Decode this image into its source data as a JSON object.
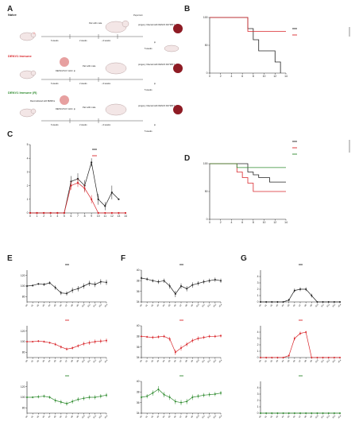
{
  "panels": {
    "A": {
      "letter": "A",
      "groups": [
        {
          "name": "Naive",
          "color": "#222222"
        },
        {
          "name": "DENV1 Immune",
          "color": "#d9262b"
        },
        {
          "name": "DENV1 Immune (R)",
          "color": "#2e8b2e"
        }
      ],
      "pups_born": "Pups born",
      "progeny_label": "progeny Infected with DENV2 D2Y98P 1x10⁷",
      "ip": "ip",
      "steps": {
        "weeks6": "6 weeks",
        "weeks2": "2 weeks",
        "weeks3": "~3 weeks",
        "weeks5": "5 weeks",
        "pair": "Pair with male",
        "denv1_dose": "DENV1/VUV 1x10⁶ ip",
        "denv1_dose_r": "DENV1/VUV 1x10⁵ ip",
        "reconst": "Reconstituted with BMMCs"
      }
    },
    "B": {
      "letter": "B",
      "xlabel": "Days post DENV2 (D2Y98P) infection",
      "ylabel": "Survival (%)",
      "legend": [
        {
          "label": "Kif²⁶ᵈᶜᵃˢ⁻ᶜʳ Ifnar1⁻/⁻ Ifngr1⁺/⁺ Naive Mother",
          "color": "#222222"
        },
        {
          "label": "Kif²⁶ᵈᶜᵃˢ⁻ᶜʳ Ifnar1⁻/⁻ Ifngr1⁺/⁺ Naive Mother",
          "color": "#d9262b"
        }
      ],
      "star": "*"
    },
    "C": {
      "letter": "C",
      "xlabel": "Days post DENV2 (D2Y98P) infection",
      "ylabel": "Clinical Score",
      "legend": [
        {
          "label": "Kif²⁶ᵈᶜᵃˢ⁻ᶜʳ Ifnar1⁻/⁻ Ifngr1⁺/⁺ Naive Mother",
          "color": "#222222"
        },
        {
          "label": "Kif²⁶ᵈᶜᵃˢ⁻ᶜʳ Ifnar1⁻/⁻ Ifngr1⁺/⁺ Naive Mother",
          "color": "#d9262b"
        }
      ]
    },
    "D": {
      "letter": "D",
      "xlabel": "Days post DENV2 (D2Y98P) infection",
      "ylabel": "Survival (%)",
      "legend": [
        {
          "label": "Kif²⁶ᵈᶜᵃˢ⁻ᶜʳ Ifnar1⁻/⁻ Ifngr1⁺/⁺ Naive Mother",
          "color": "#222222"
        },
        {
          "label": "Kif²⁶ᵈᶜᵃˢ⁻ᶜʳ Ifnar1⁻/⁻ Ifngr1⁺/⁺ DENV1 Immune Mother",
          "color": "#d9262b"
        },
        {
          "label": "Kif²⁶ᵈᶜᵃˢ⁻ᶜʳ Ifnar1⁻/⁻ Ifngr1⁺/⁺ DENV1 Immune Mother(R)",
          "color": "#2e8b2e"
        }
      ],
      "pval": "0.116",
      "star": "*"
    },
    "E": {
      "letter": "E",
      "ylabel": "Percentage change in body mass",
      "xlabel": "Days post DENV2 (D2Y98P) infection"
    },
    "F": {
      "letter": "F",
      "ylabel": "Body Temperature in °C",
      "xlabel": "Days post DENV2 (D2Y98P) infection"
    },
    "G": {
      "letter": "G",
      "ylabel": "Clinical Score",
      "xlabel": "Days post DENV2 (D2Y98P) infection"
    }
  },
  "series_legends": {
    "naive": "Kif²⁶ᵈᶜᵃˢ⁻ᶜʳ Ifnar1⁻/⁻ Ifngr1⁺/⁺ Naive Mother",
    "immune": "Kif²⁶ᵈᶜᵃˢ⁻ᶜʳ Ifnar1⁻/⁻ Ifngr1⁺/⁺ DENV1 Immune Mother",
    "immune_r": "Kif²⁶ᵈᶜᵃˢ⁻ᶜʳ Ifnar1⁻/⁻ Ifngr1⁺/⁺ DENV1 Immune Mother(R)"
  },
  "colors": {
    "naive": "#222222",
    "immune": "#d9262b",
    "immune_r": "#2e8b2e"
  },
  "chart_data": [
    {
      "id": "B",
      "type": "line",
      "title": "",
      "xlabel": "Days post DENV2 (D2Y98P) infection",
      "ylabel": "Survival (%)",
      "xlim": [
        0,
        14
      ],
      "ylim": [
        0,
        100
      ],
      "xticks": [
        0,
        2,
        4,
        6,
        8,
        10,
        12,
        14
      ],
      "yticks": [
        0,
        50,
        100
      ],
      "series": [
        {
          "name": "Naive Mother",
          "color": "#222222",
          "x": [
            0,
            6,
            7,
            8,
            9,
            10,
            11,
            12,
            13
          ],
          "y": [
            100,
            100,
            80,
            60,
            40,
            40,
            40,
            20,
            0
          ]
        },
        {
          "name": "Naive Mother",
          "color": "#d9262b",
          "x": [
            0,
            6,
            7,
            14
          ],
          "y": [
            100,
            100,
            75,
            75
          ]
        }
      ]
    },
    {
      "id": "C",
      "type": "line",
      "title": "",
      "xlabel": "Days post DENV2 (D2Y98P) infection",
      "ylabel": "Clinical Score",
      "xlim": [
        0,
        14
      ],
      "ylim": [
        0,
        5
      ],
      "xticks": [
        0,
        1,
        2,
        3,
        4,
        5,
        6,
        7,
        8,
        9,
        10,
        11,
        12,
        13,
        14
      ],
      "yticks": [
        0,
        1,
        2,
        3,
        4,
        5
      ],
      "series": [
        {
          "name": "Naive Mother",
          "color": "#222222",
          "x": [
            0,
            1,
            2,
            3,
            4,
            5,
            6,
            7,
            8,
            9,
            10,
            11,
            12,
            13
          ],
          "y": [
            0,
            0,
            0,
            0,
            0,
            0,
            2.3,
            2.5,
            2.0,
            3.7,
            1.0,
            0.5,
            1.5,
            1.0
          ],
          "err": [
            0,
            0,
            0,
            0,
            0,
            0,
            0.4,
            0.4,
            0.4,
            0.3,
            0.4,
            0.3,
            0.5,
            0
          ]
        },
        {
          "name": "Naive Mother",
          "color": "#d9262b",
          "x": [
            0,
            1,
            2,
            3,
            4,
            5,
            6,
            7,
            8,
            9,
            10,
            11,
            12,
            13,
            14
          ],
          "y": [
            0,
            0,
            0,
            0,
            0,
            0,
            2.0,
            2.2,
            1.8,
            1.0,
            0,
            0,
            0,
            0,
            0
          ],
          "err": [
            0,
            0,
            0,
            0,
            0,
            0,
            0.3,
            0.3,
            0.3,
            0.3,
            0,
            0,
            0,
            0,
            0
          ]
        }
      ]
    },
    {
      "id": "D",
      "type": "line",
      "title": "",
      "xlabel": "Days post DENV2 (D2Y98P) infection",
      "ylabel": "Survival (%)",
      "xlim": [
        0,
        14
      ],
      "ylim": [
        0,
        100
      ],
      "xticks": [
        0,
        2,
        4,
        6,
        8,
        10,
        12,
        14
      ],
      "yticks": [
        0,
        50,
        100
      ],
      "series": [
        {
          "name": "Naive Mother",
          "color": "#222222",
          "x": [
            0,
            6,
            7,
            8,
            9,
            11,
            14
          ],
          "y": [
            100,
            100,
            85,
            80,
            75,
            67,
            67
          ]
        },
        {
          "name": "DENV1 Immune Mother",
          "color": "#d9262b",
          "x": [
            0,
            4,
            5,
            6,
            7,
            8,
            14
          ],
          "y": [
            100,
            100,
            85,
            75,
            65,
            50,
            50
          ]
        },
        {
          "name": "DENV1 Immune Mother(R)",
          "color": "#2e8b2e",
          "x": [
            0,
            5,
            14
          ],
          "y": [
            100,
            93,
            93
          ]
        }
      ]
    },
    {
      "id": "E",
      "type": "line",
      "title": "",
      "xlabel": "Days post DENV2 (D2Y98P) infection",
      "ylabel": "Percentage change in body mass",
      "xticks": [
        "d0",
        "d1",
        "d2",
        "d3",
        "d4",
        "d5",
        "d6",
        "d7",
        "d8",
        "d9",
        "d10",
        "d11",
        "d12",
        "d13",
        "d14"
      ],
      "subplots": [
        {
          "name": "Naive Mother",
          "color": "#222222",
          "ylim": [
            70,
            130
          ],
          "yticks": [
            80,
            100,
            120
          ],
          "y": [
            100,
            101,
            104,
            103,
            106,
            97,
            87,
            86,
            92,
            95,
            100,
            105,
            103,
            108,
            107
          ],
          "err": [
            2,
            2,
            2,
            3,
            3,
            4,
            4,
            4,
            5,
            5,
            5,
            5,
            5,
            5,
            5
          ]
        },
        {
          "name": "DENV1 Immune Mother",
          "color": "#d9262b",
          "ylim": [
            70,
            130
          ],
          "yticks": [
            80,
            100,
            120
          ],
          "y": [
            100,
            100,
            101,
            100,
            98,
            95,
            90,
            86,
            88,
            92,
            96,
            98,
            100,
            101,
            102
          ],
          "err": [
            1,
            1,
            2,
            2,
            2,
            3,
            3,
            3,
            3,
            3,
            4,
            4,
            4,
            4,
            4
          ]
        },
        {
          "name": "DENV1 Immune Mother(R)",
          "color": "#2e8b2e",
          "ylim": [
            70,
            130
          ],
          "yticks": [
            80,
            100,
            120
          ],
          "y": [
            100,
            100,
            101,
            102,
            100,
            94,
            91,
            88,
            92,
            96,
            98,
            100,
            100,
            102,
            104
          ],
          "err": [
            2,
            2,
            3,
            3,
            3,
            4,
            4,
            4,
            4,
            4,
            4,
            4,
            4,
            4,
            4
          ]
        }
      ]
    },
    {
      "id": "F",
      "type": "line",
      "title": "",
      "xlabel": "Days post DENV2 (D2Y98P) infection",
      "ylabel": "Body Temperature in °C",
      "xticks": [
        "d0",
        "d1",
        "d2",
        "d3",
        "d4",
        "d5",
        "d6",
        "d7",
        "d8",
        "d9",
        "d10",
        "d11",
        "d12",
        "d13",
        "d14"
      ],
      "subplots": [
        {
          "name": "Naive Mother",
          "color": "#222222",
          "ylim": [
            34,
            40
          ],
          "yticks": [
            34,
            36,
            38,
            40
          ],
          "y": [
            38.5,
            38.3,
            38.0,
            37.8,
            38.0,
            37.0,
            35.5,
            37.0,
            36.5,
            37.2,
            37.5,
            37.8,
            38.0,
            38.2,
            38.0
          ],
          "err": [
            0.3,
            0.3,
            0.3,
            0.4,
            0.4,
            0.5,
            0.6,
            0.5,
            0.5,
            0.5,
            0.4,
            0.4,
            0.4,
            0.4,
            0.4
          ]
        },
        {
          "name": "DENV1 Immune Mother",
          "color": "#d9262b",
          "ylim": [
            34,
            40
          ],
          "yticks": [
            34,
            36,
            38,
            40
          ],
          "y": [
            38.0,
            37.9,
            37.8,
            37.9,
            38.0,
            37.5,
            35.0,
            35.8,
            36.5,
            37.2,
            37.6,
            37.8,
            38.0,
            38.0,
            38.1
          ],
          "err": [
            0.2,
            0.2,
            0.3,
            0.3,
            0.3,
            0.4,
            0.5,
            0.5,
            0.4,
            0.4,
            0.4,
            0.3,
            0.3,
            0.3,
            0.3
          ]
        },
        {
          "name": "DENV1 Immune Mother(R)",
          "color": "#2e8b2e",
          "ylim": [
            34,
            40
          ],
          "yticks": [
            34,
            36,
            38,
            40
          ],
          "y": [
            37.0,
            37.2,
            37.8,
            38.5,
            37.5,
            37.0,
            36.2,
            36.0,
            36.2,
            37.0,
            37.2,
            37.4,
            37.5,
            37.6,
            37.8
          ],
          "err": [
            0.3,
            0.4,
            0.5,
            0.6,
            0.5,
            0.5,
            0.5,
            0.5,
            0.5,
            0.5,
            0.4,
            0.4,
            0.4,
            0.4,
            0.4
          ]
        }
      ]
    },
    {
      "id": "G",
      "type": "line",
      "title": "",
      "xlabel": "Days post DENV2 (D2Y98P) infection",
      "ylabel": "Clinical Score",
      "xticks": [
        "d0",
        "d1",
        "d2",
        "d3",
        "d4",
        "d5",
        "d6",
        "d7",
        "d8",
        "d9",
        "d10",
        "d11",
        "d12",
        "d13",
        "d14"
      ],
      "subplots": [
        {
          "name": "Naive Mother",
          "color": "#222222",
          "ylim": [
            0,
            5
          ],
          "yticks": [
            0,
            1,
            2,
            3,
            4
          ],
          "y": [
            0,
            0,
            0,
            0,
            0,
            0.3,
            1.8,
            2.0,
            2.0,
            1.0,
            0,
            0,
            0,
            0,
            0
          ],
          "err": [
            0,
            0,
            0,
            0,
            0,
            0.2,
            0.3,
            0.3,
            0.3,
            0.3,
            0,
            0,
            0,
            0,
            0
          ]
        },
        {
          "name": "DENV1 Immune Mother",
          "color": "#d9262b",
          "ylim": [
            0,
            5
          ],
          "yticks": [
            0,
            1,
            2,
            3,
            4
          ],
          "y": [
            0,
            0,
            0,
            0,
            0,
            0.3,
            3.0,
            3.8,
            4.0,
            0,
            0,
            0,
            0,
            0,
            0
          ],
          "err": [
            0,
            0,
            0,
            0,
            0,
            0.2,
            0.3,
            0.3,
            0.2,
            0,
            0,
            0,
            0,
            0,
            0
          ]
        },
        {
          "name": "DENV1 Immune Mother(R)",
          "color": "#2e8b2e",
          "ylim": [
            0,
            5
          ],
          "yticks": [
            0,
            1,
            2,
            3,
            4
          ],
          "y": [
            0,
            0,
            0,
            0,
            0,
            0,
            0,
            0,
            0,
            0,
            0,
            0,
            0,
            0,
            0
          ],
          "err": [
            0,
            0,
            0,
            0,
            0,
            0,
            0,
            0,
            0,
            0,
            0,
            0,
            0,
            0,
            0
          ]
        }
      ]
    }
  ]
}
